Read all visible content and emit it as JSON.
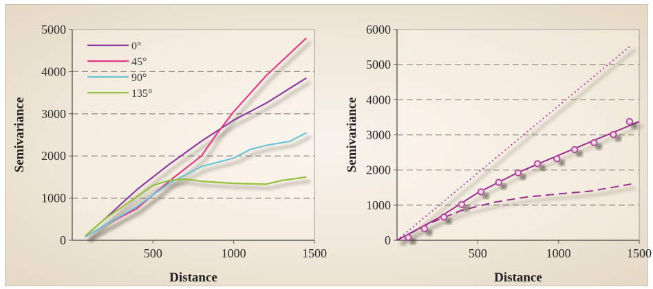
{
  "chart_data": [
    {
      "type": "line",
      "xlabel": "Distance",
      "ylabel": "Semivariance",
      "xlim": [
        0,
        1500
      ],
      "ylim": [
        0,
        5000
      ],
      "xticks": [
        "500",
        "1000",
        "1500"
      ],
      "yticks": [
        "0",
        "1000",
        "2000",
        "3000",
        "4000",
        "5000"
      ],
      "grid": "dashed horizontal",
      "legend_position": "top-left",
      "series": [
        {
          "name": "0°",
          "color": "#8e3aa0",
          "x": [
            80,
            200,
            400,
            600,
            800,
            1000,
            1200,
            1450
          ],
          "y": [
            100,
            500,
            1200,
            1800,
            2350,
            2850,
            3250,
            3850
          ]
        },
        {
          "name": "45°",
          "color": "#e0388a",
          "x": [
            80,
            200,
            400,
            600,
            800,
            900,
            1000,
            1200,
            1450
          ],
          "y": [
            80,
            350,
            750,
            1400,
            2000,
            2550,
            3050,
            3900,
            4800
          ]
        },
        {
          "name": "90°",
          "color": "#6cc4d8",
          "x": [
            80,
            200,
            400,
            600,
            800,
            1000,
            1100,
            1200,
            1350,
            1450
          ],
          "y": [
            80,
            350,
            800,
            1350,
            1750,
            1950,
            2150,
            2250,
            2350,
            2550
          ]
        },
        {
          "name": "135°",
          "color": "#95c23c",
          "x": [
            80,
            200,
            350,
            500,
            600,
            700,
            800,
            1000,
            1200,
            1300,
            1450
          ],
          "y": [
            100,
            500,
            900,
            1300,
            1420,
            1450,
            1400,
            1350,
            1330,
            1420,
            1500
          ]
        }
      ]
    },
    {
      "type": "scatter",
      "xlabel": "Distance",
      "ylabel": "Semivariance",
      "xlim": [
        0,
        1500
      ],
      "ylim": [
        0,
        6000
      ],
      "xticks": [
        "500",
        "1000",
        "1500"
      ],
      "yticks": [
        "0",
        "1000",
        "2000",
        "3000",
        "4000",
        "5000",
        "6000"
      ],
      "grid": "dashed horizontal",
      "points": {
        "color": "#b04aa0",
        "x": [
          70,
          170,
          290,
          400,
          520,
          630,
          750,
          870,
          990,
          1100,
          1220,
          1340,
          1440
        ],
        "y": [
          80,
          330,
          660,
          1020,
          1380,
          1650,
          1920,
          2180,
          2320,
          2580,
          2780,
          3010,
          3380
        ]
      },
      "lines": [
        {
          "style": "solid",
          "color": "#9c2c8e",
          "x": [
            0,
            250,
            500,
            750,
            1000,
            1250,
            1500
          ],
          "y": [
            0,
            620,
            1350,
            1930,
            2420,
            2900,
            3380
          ]
        },
        {
          "style": "dotted",
          "color": "#b83fa8",
          "x": [
            0,
            1450
          ],
          "y": [
            0,
            5550
          ]
        },
        {
          "style": "dashed",
          "color": "#9c2c8e",
          "x": [
            0,
            200,
            400,
            600,
            800,
            1000,
            1200,
            1400,
            1450
          ],
          "y": [
            0,
            480,
            850,
            1080,
            1230,
            1320,
            1400,
            1560,
            1600
          ]
        }
      ]
    }
  ]
}
